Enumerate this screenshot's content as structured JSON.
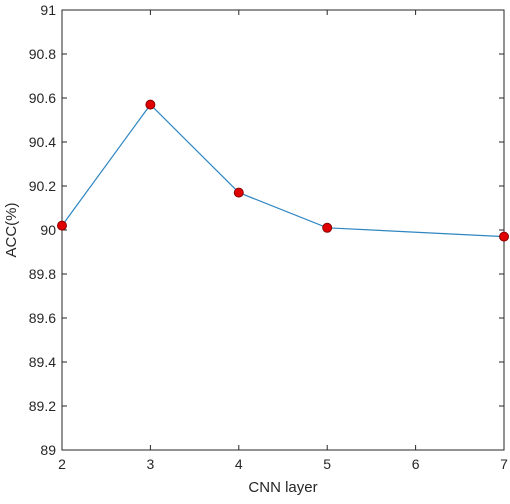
{
  "chart_data": {
    "type": "line",
    "title": "",
    "xlabel": "CNN layer",
    "ylabel": "ACC(%)",
    "xlim": [
      2,
      7
    ],
    "ylim": [
      89,
      91
    ],
    "x_ticks": [
      2,
      3,
      4,
      5,
      6,
      7
    ],
    "y_ticks": [
      89,
      89.2,
      89.4,
      89.6,
      89.8,
      90,
      90.2,
      90.4,
      90.6,
      90.8,
      91
    ],
    "x_tick_labels": [
      "2",
      "3",
      "4",
      "5",
      "6",
      "7"
    ],
    "y_tick_labels": [
      "89",
      "89.2",
      "89.4",
      "89.6",
      "89.8",
      "90",
      "90.2",
      "90.4",
      "90.6",
      "90.8",
      "91"
    ],
    "grid": false,
    "series": [
      {
        "x": [
          2,
          3,
          4,
          5,
          7
        ],
        "values": [
          90.02,
          90.57,
          90.17,
          90.01,
          89.97
        ],
        "line_color": "#2e86c1",
        "marker_color": "#e00000",
        "marker_edge": "#8b0000"
      }
    ]
  }
}
